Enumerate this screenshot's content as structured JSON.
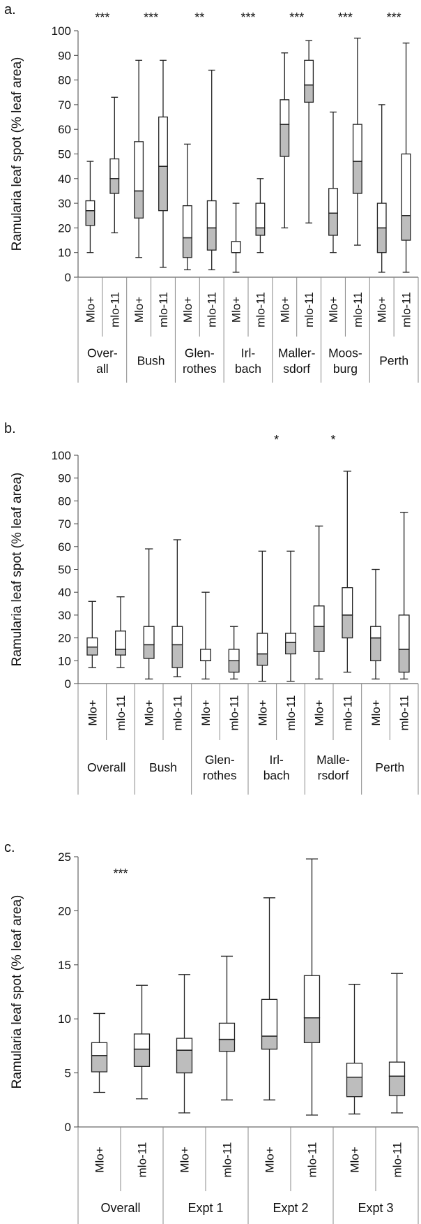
{
  "chart_data": [
    {
      "panel_label": "a.",
      "type": "boxplot",
      "ylabel": "Ramularia leaf spot (% leaf area)",
      "ylim": [
        0,
        100
      ],
      "yticks": [
        0,
        10,
        20,
        30,
        40,
        50,
        60,
        70,
        80,
        90,
        100
      ],
      "groups": [
        {
          "label_lines": [
            "Over-",
            "all"
          ],
          "significance": "***",
          "boxes": [
            {
              "genotype": "Mlo+",
              "min": 10,
              "q1": 21,
              "median": 27,
              "q3": 31,
              "max": 47
            },
            {
              "genotype": "mlo-11",
              "min": 18,
              "q1": 34,
              "median": 40,
              "q3": 48,
              "max": 73
            }
          ]
        },
        {
          "label_lines": [
            "Bush"
          ],
          "significance": "***",
          "boxes": [
            {
              "genotype": "Mlo+",
              "min": 8,
              "q1": 24,
              "median": 35,
              "q3": 55,
              "max": 88
            },
            {
              "genotype": "mlo-11",
              "min": 4,
              "q1": 27,
              "median": 45,
              "q3": 65,
              "max": 88
            }
          ]
        },
        {
          "label_lines": [
            "Glen-",
            "rothes"
          ],
          "significance": "**",
          "boxes": [
            {
              "genotype": "Mlo+",
              "min": 3,
              "q1": 8,
              "median": 16,
              "q3": 29,
              "max": 54
            },
            {
              "genotype": "mlo-11",
              "min": 3,
              "q1": 11,
              "median": 20,
              "q3": 31,
              "max": 84
            }
          ]
        },
        {
          "label_lines": [
            "Irl-",
            "bach"
          ],
          "significance": "***",
          "boxes": [
            {
              "genotype": "Mlo+",
              "min": 2,
              "q1": 10,
              "median": 10,
              "q3": 14.5,
              "max": 30
            },
            {
              "genotype": "mlo-11",
              "min": 10,
              "q1": 17,
              "median": 20,
              "q3": 30,
              "max": 40
            }
          ]
        },
        {
          "label_lines": [
            "Maller-",
            "sdorf"
          ],
          "significance": "***",
          "boxes": [
            {
              "genotype": "Mlo+",
              "min": 20,
              "q1": 49,
              "median": 62,
              "q3": 72,
              "max": 91
            },
            {
              "genotype": "mlo-11",
              "min": 22,
              "q1": 71,
              "median": 78,
              "q3": 88,
              "max": 96
            }
          ]
        },
        {
          "label_lines": [
            "Moos-",
            "burg"
          ],
          "significance": "***",
          "boxes": [
            {
              "genotype": "Mlo+",
              "min": 10,
              "q1": 17,
              "median": 26,
              "q3": 36,
              "max": 67
            },
            {
              "genotype": "mlo-11",
              "min": 13,
              "q1": 34,
              "median": 47,
              "q3": 62,
              "max": 97
            }
          ]
        },
        {
          "label_lines": [
            "Perth"
          ],
          "significance": "***",
          "boxes": [
            {
              "genotype": "Mlo+",
              "min": 2,
              "q1": 10,
              "median": 20,
              "q3": 30,
              "max": 70
            },
            {
              "genotype": "mlo-11",
              "min": 2,
              "q1": 15,
              "median": 25,
              "q3": 50,
              "max": 95
            }
          ]
        }
      ]
    },
    {
      "panel_label": "b.",
      "type": "boxplot",
      "ylabel": "Ramularia leaf spot (% leaf area)",
      "ylim": [
        0,
        100
      ],
      "yticks": [
        0,
        10,
        20,
        30,
        40,
        50,
        60,
        70,
        80,
        90,
        100
      ],
      "groups": [
        {
          "label_lines": [
            "Overall"
          ],
          "significance": "",
          "boxes": [
            {
              "genotype": "Mlo+",
              "min": 7,
              "q1": 12.5,
              "median": 16,
              "q3": 20,
              "max": 36
            },
            {
              "genotype": "mlo-11",
              "min": 7,
              "q1": 12.5,
              "median": 15,
              "q3": 23,
              "max": 38
            }
          ]
        },
        {
          "label_lines": [
            "Bush"
          ],
          "significance": "",
          "boxes": [
            {
              "genotype": "Mlo+",
              "min": 2,
              "q1": 11,
              "median": 17,
              "q3": 25,
              "max": 59
            },
            {
              "genotype": "mlo-11",
              "min": 3,
              "q1": 7,
              "median": 17,
              "q3": 25,
              "max": 63
            }
          ]
        },
        {
          "label_lines": [
            "Glen-",
            "rothes"
          ],
          "significance": "",
          "boxes": [
            {
              "genotype": "Mlo+",
              "min": 2,
              "q1": 10,
              "median": 10,
              "q3": 15,
              "max": 40
            },
            {
              "genotype": "mlo-11",
              "min": 2,
              "q1": 5,
              "median": 10,
              "q3": 15,
              "max": 25
            }
          ]
        },
        {
          "label_lines": [
            "Irl-",
            "bach"
          ],
          "significance": "*",
          "boxes": [
            {
              "genotype": "Mlo+",
              "min": 1,
              "q1": 8,
              "median": 13,
              "q3": 22,
              "max": 58
            },
            {
              "genotype": "mlo-11",
              "min": 1,
              "q1": 13,
              "median": 18,
              "q3": 22,
              "max": 58
            }
          ]
        },
        {
          "label_lines": [
            "Malle-",
            "rsdorf"
          ],
          "significance": "*",
          "boxes": [
            {
              "genotype": "Mlo+",
              "min": 2,
              "q1": 14,
              "median": 25,
              "q3": 34,
              "max": 69
            },
            {
              "genotype": "mlo-11",
              "min": 5,
              "q1": 20,
              "median": 30,
              "q3": 42,
              "max": 93
            }
          ]
        },
        {
          "label_lines": [
            "Perth"
          ],
          "significance": "",
          "boxes": [
            {
              "genotype": "Mlo+",
              "min": 2,
              "q1": 10,
              "median": 20,
              "q3": 25,
              "max": 50
            },
            {
              "genotype": "mlo-11",
              "min": 2,
              "q1": 5,
              "median": 15,
              "q3": 30,
              "max": 75
            }
          ]
        }
      ]
    },
    {
      "panel_label": "c.",
      "type": "boxplot",
      "ylabel": "Ramularia leaf spot (% leaf area)",
      "ylim": [
        0,
        25
      ],
      "yticks": [
        0,
        5,
        10,
        15,
        20,
        25
      ],
      "groups": [
        {
          "label_lines": [
            "Overall"
          ],
          "significance": "***",
          "boxes": [
            {
              "genotype": "Mlo+",
              "min": 3.2,
              "q1": 5.1,
              "median": 6.6,
              "q3": 7.8,
              "max": 10.5
            },
            {
              "genotype": "mlo-11",
              "min": 2.6,
              "q1": 5.6,
              "median": 7.2,
              "q3": 8.6,
              "max": 13.1
            }
          ]
        },
        {
          "label_lines": [
            "Expt 1"
          ],
          "significance": "",
          "boxes": [
            {
              "genotype": "Mlo+",
              "min": 1.3,
              "q1": 5.0,
              "median": 7.1,
              "q3": 8.2,
              "max": 14.1
            },
            {
              "genotype": "mlo-11",
              "min": 2.5,
              "q1": 7.0,
              "median": 8.1,
              "q3": 9.6,
              "max": 15.8
            }
          ]
        },
        {
          "label_lines": [
            "Expt 2"
          ],
          "significance": "",
          "boxes": [
            {
              "genotype": "Mlo+",
              "min": 2.5,
              "q1": 7.2,
              "median": 8.4,
              "q3": 11.8,
              "max": 21.2
            },
            {
              "genotype": "mlo-11",
              "min": 1.1,
              "q1": 7.8,
              "median": 10.1,
              "q3": 14.0,
              "max": 24.8
            }
          ]
        },
        {
          "label_lines": [
            "Expt 3"
          ],
          "significance": "",
          "boxes": [
            {
              "genotype": "Mlo+",
              "min": 1.2,
              "q1": 2.8,
              "median": 4.6,
              "q3": 5.9,
              "max": 13.2
            },
            {
              "genotype": "mlo-11",
              "min": 1.3,
              "q1": 2.9,
              "median": 4.7,
              "q3": 6.0,
              "max": 14.2
            }
          ]
        }
      ]
    }
  ]
}
